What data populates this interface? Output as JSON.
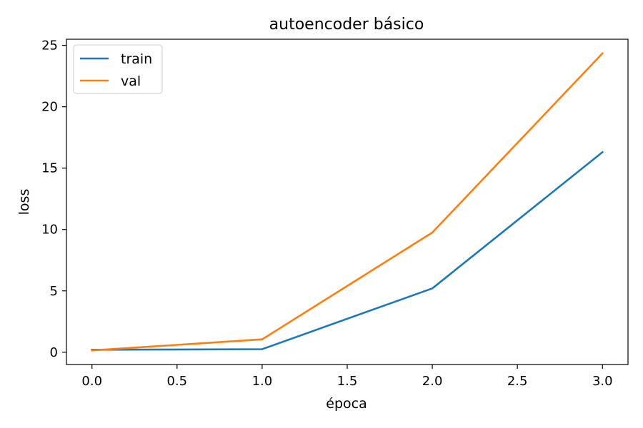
{
  "chart_data": {
    "type": "line",
    "title": "autoencoder básico",
    "xlabel": "época",
    "ylabel": "loss",
    "xlim": [
      -0.15,
      3.15
    ],
    "ylim": [
      -1.0,
      25.5
    ],
    "xticks": [
      0.0,
      0.5,
      1.0,
      1.5,
      2.0,
      2.5,
      3.0
    ],
    "xtick_labels": [
      "0.0",
      "0.5",
      "1.0",
      "1.5",
      "2.0",
      "2.5",
      "3.0"
    ],
    "yticks": [
      0,
      5,
      10,
      15,
      20,
      25
    ],
    "ytick_labels": [
      "0",
      "5",
      "10",
      "15",
      "20",
      "25"
    ],
    "grid": false,
    "legend_position": "top-left",
    "x": [
      0,
      1,
      2,
      3
    ],
    "series": [
      {
        "name": "train",
        "color": "#1f77b4",
        "values": [
          0.2,
          0.25,
          5.2,
          16.3
        ]
      },
      {
        "name": "val",
        "color": "#ff7f0e",
        "values": [
          0.15,
          1.05,
          9.75,
          24.35
        ]
      }
    ]
  }
}
